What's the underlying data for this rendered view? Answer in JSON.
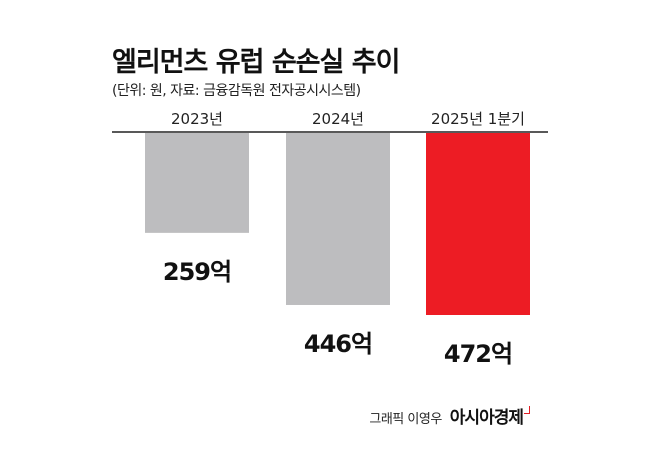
{
  "chart_data": {
    "type": "bar",
    "title": "엘리먼츠 유럽 순손실 추이",
    "subtitle": "(단위: 원, 자료: 금융감독원 전자공시시스템)",
    "categories": [
      "2023년",
      "2024년",
      "2025년 1분기"
    ],
    "values": [
      259,
      446,
      472
    ],
    "value_labels": [
      "259억",
      "446억",
      "472억"
    ],
    "unit": "억 원",
    "orientation": "downward",
    "colors": [
      "#bdbdbf",
      "#bdbdbf",
      "#ed1c24"
    ],
    "axis_color": "#222222",
    "grid": false,
    "legend": "none"
  },
  "footer": {
    "credit": "그래픽 이영우",
    "brand": "아시아경제"
  }
}
